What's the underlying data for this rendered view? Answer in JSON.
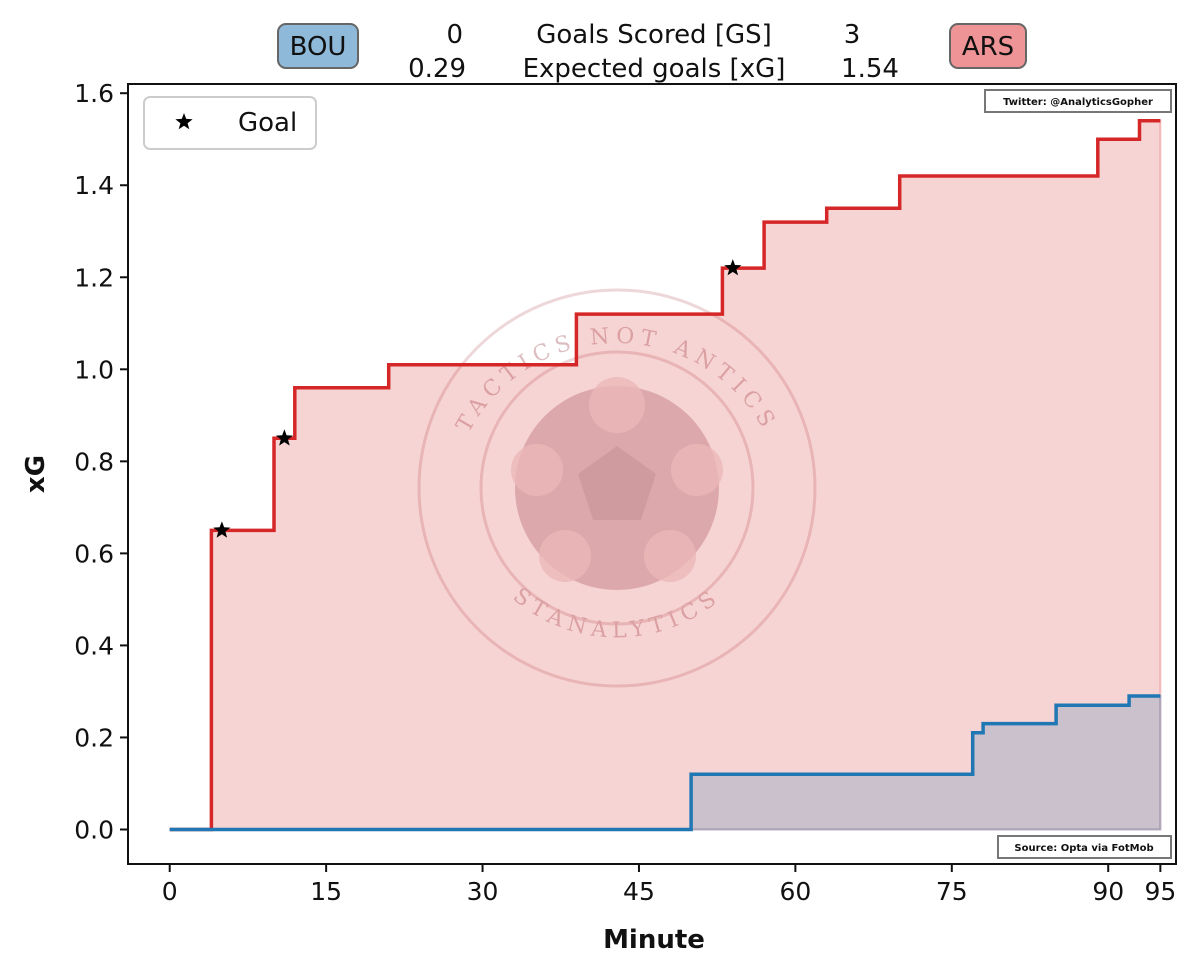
{
  "header": {
    "home_team": "BOU",
    "away_team": "ARS",
    "home_goals": "0",
    "away_goals": "3",
    "goals_label": "Goals Scored [GS]",
    "home_xg": "0.29",
    "away_xg": "1.54",
    "xg_label": "Expected goals [xG]"
  },
  "credits": {
    "twitter": "Twitter: @AnalyticsGopher",
    "source": "Source: Opta via FotMob"
  },
  "watermark": {
    "top_text": "TACTICS NOT ANTICS",
    "bottom_text": "STANALYTICS"
  },
  "colors": {
    "home": "#1f77b4",
    "away": "#d62728",
    "home_badge": "#8fb9d9",
    "away_badge": "#ee9496"
  },
  "chart_data": {
    "type": "line",
    "step": "post",
    "xlabel": "Minute",
    "ylabel": "xG",
    "xlim": [
      -4,
      96.5
    ],
    "ylim": [
      -0.075,
      1.62
    ],
    "xticks": [
      0,
      15,
      30,
      45,
      60,
      75,
      90,
      95
    ],
    "yticks": [
      0.0,
      0.2,
      0.4,
      0.6,
      0.8,
      1.0,
      1.2,
      1.4,
      1.6
    ],
    "legend": {
      "entries": [
        "Goal"
      ],
      "placement": "top-left"
    },
    "series": [
      {
        "name": "ARS",
        "color": "#d62728",
        "x": [
          0,
          4,
          10,
          12,
          21,
          39,
          53,
          57,
          63,
          70,
          89,
          93,
          95
        ],
        "y": [
          0.0,
          0.65,
          0.85,
          0.96,
          1.01,
          1.12,
          1.22,
          1.32,
          1.35,
          1.42,
          1.5,
          1.54,
          1.54
        ]
      },
      {
        "name": "BOU",
        "color": "#1f77b4",
        "x": [
          0,
          4,
          50,
          77,
          78,
          85,
          92,
          95
        ],
        "y": [
          0.0,
          0.0,
          0.12,
          0.21,
          0.23,
          0.27,
          0.29,
          0.29
        ]
      }
    ],
    "goals": [
      {
        "x": 5,
        "y": 0.65
      },
      {
        "x": 11,
        "y": 0.85
      },
      {
        "x": 54,
        "y": 1.22
      }
    ]
  }
}
